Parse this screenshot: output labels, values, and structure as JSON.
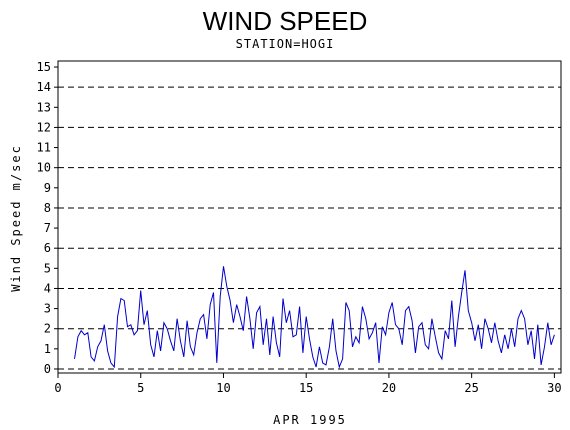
{
  "chart_data": {
    "type": "line",
    "title": "WIND SPEED",
    "subtitle": "STATION=HOGI",
    "xlabel": "APR 1995",
    "ylabel": "Wind Speed m/sec",
    "xlim": [
      0,
      30.4
    ],
    "ylim": [
      -0.2,
      15.3
    ],
    "x_ticks": [
      0,
      5,
      10,
      15,
      20,
      25,
      30
    ],
    "y_ticks": [
      0,
      1,
      2,
      3,
      4,
      5,
      6,
      7,
      8,
      9,
      10,
      11,
      12,
      13,
      14,
      15
    ],
    "dashed_gridlines_y": [
      0,
      2,
      4,
      6,
      8,
      10,
      12,
      14
    ],
    "series_color": "#0000cc",
    "series": [
      {
        "x": [
          1.0,
          1.2,
          1.4,
          1.6,
          1.8,
          2.0,
          2.2,
          2.4,
          2.6,
          2.8,
          3.0,
          3.2,
          3.4,
          3.6,
          3.8,
          4.0,
          4.2,
          4.4,
          4.6,
          4.8,
          5.0,
          5.2,
          5.4,
          5.6,
          5.8,
          6.0,
          6.2,
          6.4,
          6.6,
          6.8,
          7.0,
          7.2,
          7.4,
          7.6,
          7.8,
          8.0,
          8.2,
          8.4,
          8.6,
          8.8,
          9.0,
          9.2,
          9.4,
          9.6,
          9.8,
          10.0,
          10.2,
          10.4,
          10.6,
          10.8,
          11.0,
          11.2,
          11.4,
          11.6,
          11.8,
          12.0,
          12.2,
          12.4,
          12.6,
          12.8,
          13.0,
          13.2,
          13.4,
          13.6,
          13.8,
          14.0,
          14.2,
          14.4,
          14.6,
          14.8,
          15.0,
          15.2,
          15.4,
          15.6,
          15.8,
          16.0,
          16.2,
          16.4,
          16.6,
          16.8,
          17.0,
          17.2,
          17.4,
          17.6,
          17.8,
          18.0,
          18.2,
          18.4,
          18.6,
          18.8,
          19.0,
          19.2,
          19.4,
          19.6,
          19.8,
          20.0,
          20.2,
          20.4,
          20.6,
          20.8,
          21.0,
          21.2,
          21.4,
          21.6,
          21.8,
          22.0,
          22.2,
          22.4,
          22.6,
          22.8,
          23.0,
          23.2,
          23.4,
          23.6,
          23.8,
          24.0,
          24.2,
          24.4,
          24.6,
          24.8,
          25.0,
          25.2,
          25.4,
          25.6,
          25.8,
          26.0,
          26.2,
          26.4,
          26.6,
          26.8,
          27.0,
          27.2,
          27.4,
          27.6,
          27.8,
          28.0,
          28.2,
          28.4,
          28.6,
          28.8,
          29.0,
          29.2,
          29.4,
          29.6,
          29.8,
          30.0
        ],
        "values": [
          0.5,
          1.6,
          1.9,
          1.7,
          1.8,
          0.6,
          0.4,
          1.1,
          1.4,
          2.2,
          0.9,
          0.3,
          0.1,
          2.6,
          3.5,
          3.4,
          2.1,
          2.2,
          1.7,
          1.9,
          3.9,
          2.2,
          2.9,
          1.2,
          0.6,
          1.9,
          0.9,
          2.3,
          2.0,
          1.4,
          0.9,
          2.5,
          1.4,
          0.6,
          2.4,
          1.1,
          0.7,
          1.8,
          2.5,
          2.7,
          1.5,
          3.2,
          3.8,
          0.3,
          3.6,
          5.1,
          4.1,
          3.4,
          2.3,
          3.2,
          2.6,
          1.9,
          3.6,
          2.5,
          1.0,
          2.8,
          3.1,
          1.2,
          2.5,
          0.7,
          2.6,
          1.3,
          0.6,
          3.5,
          2.3,
          2.9,
          1.6,
          1.7,
          3.1,
          0.8,
          2.6,
          1.5,
          0.6,
          0.1,
          1.1,
          0.3,
          0.2,
          1.1,
          2.5,
          0.9,
          0.1,
          0.5,
          3.3,
          2.9,
          1.1,
          1.6,
          1.3,
          3.1,
          2.5,
          1.5,
          1.8,
          2.3,
          0.3,
          2.1,
          1.7,
          2.8,
          3.3,
          2.2,
          2.0,
          1.2,
          2.9,
          3.1,
          2.4,
          0.8,
          2.1,
          2.3,
          1.2,
          1.0,
          2.5,
          1.6,
          0.8,
          0.5,
          1.9,
          1.5,
          3.4,
          1.1,
          2.6,
          3.8,
          4.9,
          2.9,
          2.3,
          1.4,
          2.2,
          1.0,
          2.5,
          2.0,
          1.3,
          2.3,
          1.4,
          0.8,
          1.7,
          1.0,
          2.0,
          1.1,
          2.5,
          2.9,
          2.5,
          1.2,
          1.9,
          0.5,
          2.2,
          0.2,
          1.1,
          2.3,
          1.2,
          1.7
        ]
      }
    ]
  }
}
